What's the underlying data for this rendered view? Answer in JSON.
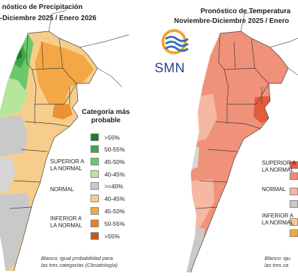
{
  "left_map": {
    "title_line1": "nóstico de Precipitación",
    "title_line2": "-Diciembre 2025 / Enero 2026",
    "legend_title_line1": "Categoría más",
    "legend_title_line2": "probable",
    "group_above": [
      "SUPERIOR A",
      "LA NORMAL"
    ],
    "group_normal": "NORMAL",
    "group_below": [
      "INFERIOR A",
      "LA NORMAL"
    ],
    "legend": [
      {
        "label": ">55%",
        "color": "#1e7b2e"
      },
      {
        "label": "50-55%",
        "color": "#3ea64a"
      },
      {
        "label": "45-50%",
        "color": "#6cc76a"
      },
      {
        "label": "40-45%",
        "color": "#b6e59c"
      },
      {
        "label": ">=40%",
        "color": "#c9c9c9"
      },
      {
        "label": "40-45%",
        "color": "#f7cd8b"
      },
      {
        "label": "45-50%",
        "color": "#f3a845"
      },
      {
        "label": "50-55%",
        "color": "#e8821f"
      },
      {
        "label": ">55%",
        "color": "#c55a11"
      }
    ],
    "footnote_line1": "Blanco: igual probabilidad para",
    "footnote_line2": "las tres categorías (Climatología)"
  },
  "right_map": {
    "title_line1": "Pronóstico de Temperatura",
    "title_line2": "Noviembre-Diciembre 2025 / Enero",
    "logo_text": "SMN",
    "group_above": [
      "SUPERIOR A",
      "LA NORMAL"
    ],
    "group_normal": "NORMAL",
    "group_below": [
      "INFERIOR A",
      "LA NORMAL"
    ],
    "legend_colors": [
      "#e35d3a",
      "#f28a6b",
      "#f7b79c",
      "#c9c9c9",
      "#f7cd8b",
      "#f3a845"
    ],
    "footnote_line1": "Blanco: igu",
    "footnote_line2": "las tres ca"
  },
  "colors": {
    "ocean": "#ffffff",
    "neighbors": "#ffffff",
    "borders": "#333333",
    "temp_base": "#f0917a",
    "temp_light": "#f5b8a3",
    "temp_dark": "#e35d3a"
  }
}
